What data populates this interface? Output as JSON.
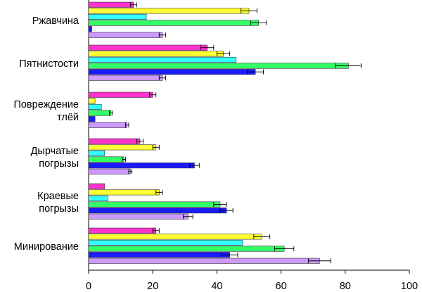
{
  "chart_data": {
    "type": "bar",
    "orientation": "horizontal",
    "categories": [
      [
        "Ржавчина"
      ],
      [
        "Пятнистости"
      ],
      [
        "Повреждение",
        "тлёй"
      ],
      [
        "Дырчатые",
        "погрызы"
      ],
      [
        "Краевые",
        "погрызы"
      ],
      [
        "Минирование"
      ]
    ],
    "xlim": [
      0,
      100
    ],
    "xticks": [
      0,
      20,
      40,
      60,
      80,
      100
    ],
    "legend": "none",
    "grid": false,
    "error_bars": true,
    "series": [
      {
        "color": "#ff33cc",
        "values": [
          14,
          37,
          20,
          16,
          5,
          21
        ],
        "errors": [
          1,
          2,
          1,
          1,
          0,
          1
        ]
      },
      {
        "color": "#ffff33",
        "values": [
          50,
          42,
          2,
          21,
          22,
          54
        ],
        "errors": [
          2.5,
          2,
          0,
          1,
          1,
          2.5
        ]
      },
      {
        "color": "#33ffff",
        "values": [
          18,
          46,
          4,
          5,
          6,
          48
        ],
        "errors": [
          0,
          0,
          0,
          0,
          0,
          0
        ]
      },
      {
        "color": "#33ff66",
        "values": [
          53,
          81,
          7,
          11,
          41,
          61
        ],
        "errors": [
          2.5,
          4,
          0.5,
          0.5,
          2,
          3
        ]
      },
      {
        "color": "#1a1aff",
        "values": [
          1,
          52,
          2,
          33,
          43,
          44
        ],
        "errors": [
          0,
          2.5,
          0,
          1.5,
          2,
          2.5
        ]
      },
      {
        "color": "#cc99ff",
        "values": [
          23,
          23,
          12,
          13,
          31,
          72
        ],
        "errors": [
          1,
          1,
          0.5,
          0.5,
          1.5,
          3.5
        ]
      }
    ]
  }
}
